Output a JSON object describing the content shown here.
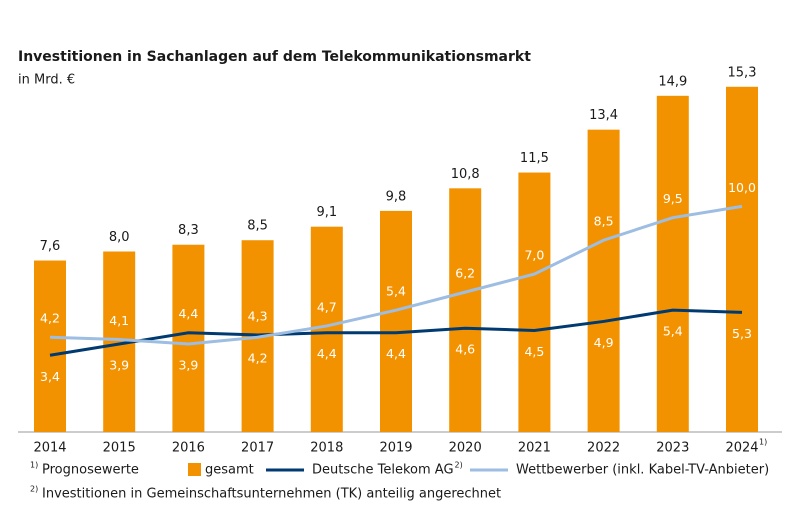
{
  "chart_data": {
    "type": "bar",
    "title": "Investitionen in Sachanlagen auf dem Telekommunikationsmarkt",
    "subtitle": "in Mrd. €",
    "categories": [
      "2014",
      "2015",
      "2016",
      "2017",
      "2018",
      "2019",
      "2020",
      "2021",
      "2022",
      "2023",
      "2024"
    ],
    "ylim": [
      0,
      16
    ],
    "series": [
      {
        "name": "gesamt",
        "type": "bar",
        "color": "#f39200",
        "values": [
          7.6,
          8.0,
          8.3,
          8.5,
          9.1,
          9.8,
          10.8,
          11.5,
          13.4,
          14.9,
          15.3
        ],
        "value_labels": [
          "7,6",
          "8,0",
          "8,3",
          "8,5",
          "9,1",
          "9,8",
          "10,8",
          "11,5",
          "13,4",
          "14,9",
          "15,3"
        ]
      },
      {
        "name": "Deutsche Telekom AG",
        "type": "line",
        "color": "#003a70",
        "values": [
          3.4,
          3.9,
          4.4,
          4.3,
          4.4,
          4.4,
          4.6,
          4.5,
          4.9,
          5.4,
          5.3
        ],
        "value_labels": [
          "3,4",
          "3,9",
          "4,4",
          "4,3",
          "4,4",
          "4,4",
          "4,6",
          "4,5",
          "4,9",
          "5,4",
          "5,3"
        ]
      },
      {
        "name": "Wettbewerber (inkl. Kabel-TV-Anbieter)",
        "type": "line",
        "color": "#9dbde2",
        "values": [
          4.2,
          4.1,
          3.9,
          4.2,
          4.7,
          5.4,
          6.2,
          7.0,
          8.5,
          9.5,
          10.0
        ],
        "value_labels": [
          "4,2",
          "4,1",
          "3,9",
          "4,2",
          "4,7",
          "5,4",
          "6,2",
          "7,0",
          "8,5",
          "9,5",
          "10,0"
        ]
      }
    ],
    "footnotes": [
      {
        "marker": "1)",
        "text": "Prognosewerte",
        "refers_to": "2024"
      },
      {
        "marker": "2)",
        "text": "Investitionen in Gemeinschaftsunternehmen (TK) anteilig angerechnet",
        "refers_to": "Deutsche Telekom AG"
      }
    ]
  }
}
